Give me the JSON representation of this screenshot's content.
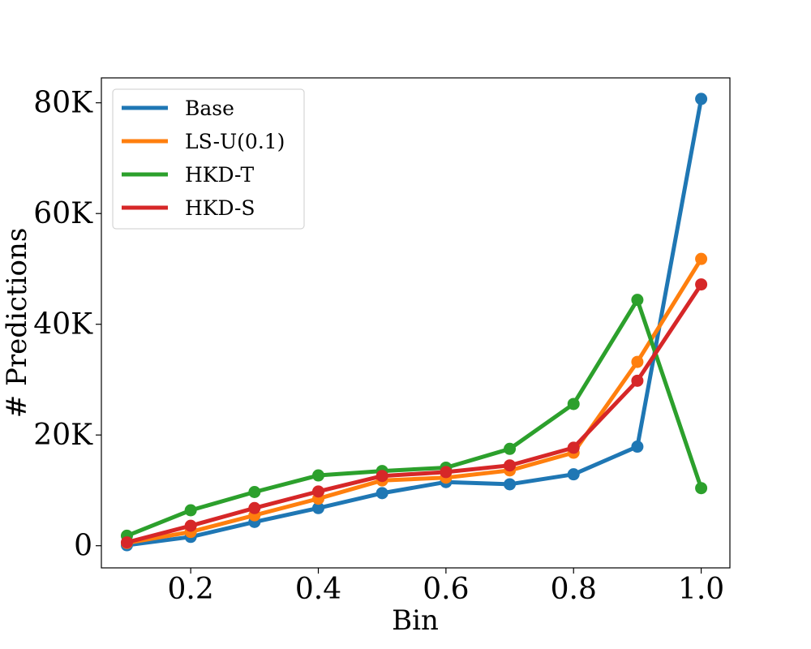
{
  "chart_data": {
    "type": "line",
    "xlabel": "Bin",
    "ylabel": "# Predictions",
    "x": [
      0.1,
      0.2,
      0.3,
      0.4,
      0.5,
      0.6,
      0.7,
      0.8,
      0.9,
      1.0
    ],
    "xlim": [
      0.06,
      1.045
    ],
    "ylim": [
      -4000,
      84500
    ],
    "x_ticks": [
      {
        "value": 0.2,
        "label": "0.2"
      },
      {
        "value": 0.4,
        "label": "0.4"
      },
      {
        "value": 0.6,
        "label": "0.6"
      },
      {
        "value": 0.8,
        "label": "0.8"
      },
      {
        "value": 1.0,
        "label": "1.0"
      }
    ],
    "y_ticks": [
      {
        "value": 0,
        "label": "0"
      },
      {
        "value": 20000,
        "label": "20K"
      },
      {
        "value": 40000,
        "label": "40K"
      },
      {
        "value": 60000,
        "label": "60K"
      },
      {
        "value": 80000,
        "label": "80K"
      }
    ],
    "grid": false,
    "legend_position": "top-left",
    "series": [
      {
        "name": "Base",
        "color": "#1f77b4",
        "values": [
          100,
          1600,
          4300,
          6800,
          9500,
          11500,
          11100,
          12900,
          17900,
          80700
        ]
      },
      {
        "name": "LS-U(0.1)",
        "color": "#ff7f0e",
        "values": [
          500,
          2500,
          5500,
          8500,
          11800,
          12300,
          13600,
          16800,
          33200,
          51800
        ]
      },
      {
        "name": "HKD-T",
        "color": "#2ca02c",
        "values": [
          1800,
          6400,
          9700,
          12700,
          13500,
          14100,
          17500,
          25600,
          44400,
          10400
        ]
      },
      {
        "name": "HKD-S",
        "color": "#d62728",
        "values": [
          600,
          3600,
          6800,
          9800,
          12600,
          13300,
          14500,
          17700,
          29800,
          47200
        ]
      }
    ]
  }
}
